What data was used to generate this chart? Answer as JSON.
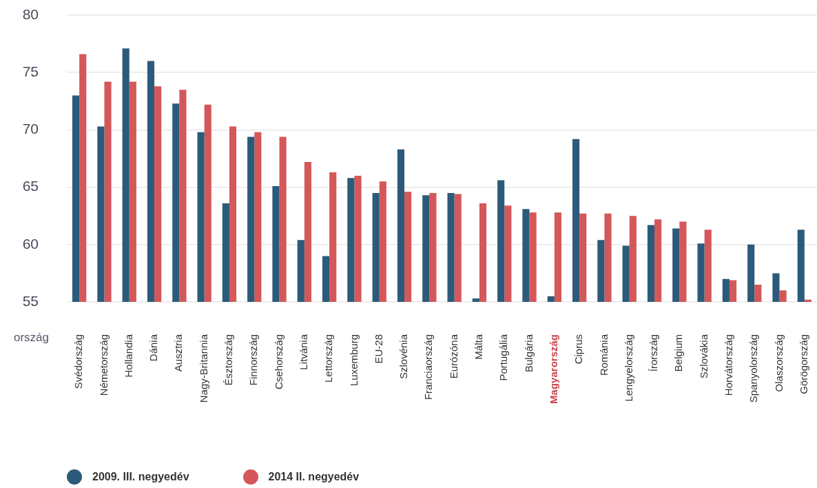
{
  "chart_data": {
    "type": "bar",
    "xlabel": "ország",
    "categories": [
      "Svédország",
      "Németország",
      "Hollandia",
      "Dánia",
      "Ausztria",
      "Nagy-Britannia",
      "Észtország",
      "Finnország",
      "Csehország",
      "Litvánia",
      "Lettország",
      "Luxemburg",
      "EU-28",
      "Szlovénia",
      "Franciaország",
      "Eurózóna",
      "Málta",
      "Portugália",
      "Bulgária",
      "Magyarország",
      "Ciprus",
      "Románia",
      "Lengyelország",
      "Írország",
      "Belgium",
      "Szlovákia",
      "Horvátország",
      "Spanyolország",
      "Olaszország",
      "Görögország"
    ],
    "series": [
      {
        "name": "2009. III. negyedév",
        "color": "#2c5a7a",
        "values": [
          73.0,
          70.3,
          77.1,
          76.0,
          72.3,
          69.8,
          63.6,
          69.4,
          65.1,
          60.4,
          59.0,
          65.8,
          64.5,
          68.3,
          64.3,
          64.5,
          55.3,
          65.6,
          63.1,
          55.5,
          69.2,
          60.4,
          59.9,
          61.7,
          61.4,
          60.1,
          57.0,
          60.0,
          57.5,
          61.3
        ]
      },
      {
        "name": "2014 II. negyedév",
        "color": "#d4585a",
        "values": [
          76.6,
          74.2,
          74.2,
          73.8,
          73.5,
          72.2,
          70.3,
          69.8,
          69.4,
          67.2,
          66.3,
          66.0,
          65.5,
          64.6,
          64.5,
          64.4,
          63.6,
          63.4,
          62.8,
          62.8,
          62.7,
          62.7,
          62.5,
          62.2,
          62.0,
          61.3,
          56.9,
          56.5,
          56.0,
          55.2
        ]
      }
    ],
    "ylim": [
      55,
      80
    ],
    "yticks": [
      55,
      60,
      65,
      70,
      75,
      80
    ],
    "grid": "y",
    "legend": "bottom left"
  }
}
